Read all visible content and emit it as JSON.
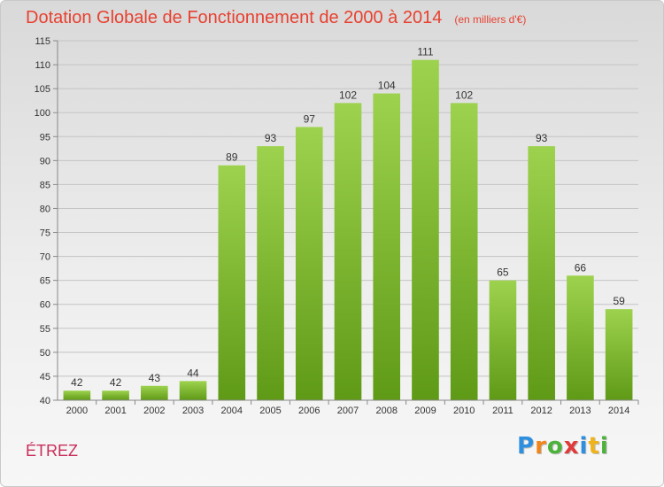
{
  "header": {
    "title": "Dotation Globale de Fonctionnement de 2000 à 2014",
    "subtitle": "(en milliers d'€)"
  },
  "footer": {
    "commune": "ÉTREZ",
    "logo_letters": [
      "P",
      "r",
      "o",
      "x",
      "i",
      "t",
      "i"
    ]
  },
  "colors": {
    "title": "#e8402f",
    "commune": "#c92d5b",
    "bar_top": "#9dd24e",
    "bar_bottom": "#5f9a16"
  },
  "chart_data": {
    "type": "bar",
    "title": "Dotation Globale de Fonctionnement de 2000 à 2014",
    "subtitle": "(en milliers d'€)",
    "categories": [
      "2000",
      "2001",
      "2002",
      "2003",
      "2004",
      "2005",
      "2006",
      "2007",
      "2008",
      "2009",
      "2010",
      "2011",
      "2012",
      "2013",
      "2014"
    ],
    "values": [
      42,
      42,
      43,
      44,
      89,
      93,
      97,
      102,
      104,
      111,
      102,
      65,
      93,
      66,
      59
    ],
    "ylim": [
      40,
      115
    ],
    "yticks": [
      40,
      45,
      50,
      55,
      60,
      65,
      70,
      75,
      80,
      85,
      90,
      95,
      100,
      105,
      110,
      115
    ],
    "grid": true,
    "data_labels": true
  }
}
